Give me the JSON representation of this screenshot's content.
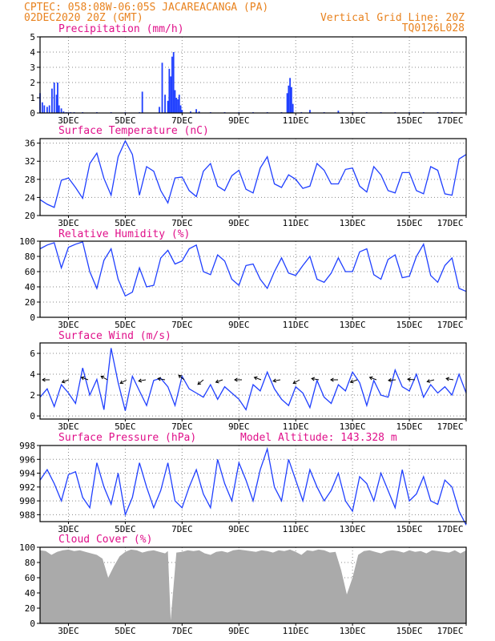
{
  "header": {
    "line1_left": "CPTEC:   058:08W-06:05S  JACAREACANGA (PA)",
    "line2_left": "02DEC2020 20Z (GMT)",
    "line2_right": "Vertical Grid Line: 20Z",
    "line3_right": "TQ0126L028"
  },
  "x_axis": {
    "tick_labels": [
      "3DEC",
      "5DEC",
      "7DEC",
      "9DEC",
      "11DEC",
      "13DEC",
      "15DEC",
      "17DEC"
    ]
  },
  "panels": {
    "precip": {
      "title": "Precipitation (mm/h)"
    },
    "temp": {
      "title": "Surface Temperature (nC)"
    },
    "rh": {
      "title": "Relative Humidity (%)"
    },
    "wind": {
      "title": "Surface Wind (m/s)"
    },
    "pressure": {
      "title": "Surface Pressure (hPa)",
      "extra": "Model Altitude: 143.328 m"
    },
    "cloud": {
      "title": "Cloud Cover (%)"
    }
  },
  "colors": {
    "series": "#1f3fff",
    "header": "#e8821e",
    "title": "#e0108a",
    "cloud": "#aaaaaa"
  },
  "chart_data": [
    {
      "type": "bar",
      "title": "Precipitation (mm/h)",
      "xlim": [
        0,
        15
      ],
      "ylim": [
        0,
        5
      ],
      "yticks": [
        0,
        1,
        2,
        3,
        4,
        5
      ],
      "x": [
        0.0,
        0.08,
        0.15,
        0.25,
        0.33,
        0.42,
        0.5,
        0.58,
        0.62,
        0.67,
        0.75,
        0.83,
        0.92,
        1.0,
        1.08,
        1.2,
        1.5,
        2.0,
        2.5,
        3.0,
        3.5,
        3.6,
        4.2,
        4.3,
        4.4,
        4.5,
        4.55,
        4.6,
        4.65,
        4.7,
        4.75,
        4.8,
        4.85,
        4.9,
        4.95,
        5.0,
        5.3,
        5.5,
        5.6,
        6.0,
        6.5,
        7.0,
        7.5,
        8.0,
        8.5,
        8.7,
        8.75,
        8.8,
        8.85,
        8.9,
        9.2,
        9.5,
        10.0,
        10.5,
        11.0,
        11.5,
        12.0,
        12.5,
        13.0,
        13.5,
        14.0,
        14.5
      ],
      "values": [
        1.3,
        0.7,
        0.5,
        0.4,
        0.5,
        1.6,
        2.0,
        1.2,
        2.0,
        0.5,
        0.3,
        0.1,
        0.05,
        0.05,
        0.05,
        0.05,
        0.05,
        0.05,
        0.05,
        0.05,
        0.05,
        1.4,
        0.4,
        3.3,
        1.2,
        0.8,
        2.9,
        2.4,
        3.7,
        4.0,
        1.5,
        1.0,
        0.9,
        1.2,
        0.5,
        0.2,
        0.1,
        0.25,
        0.1,
        0.05,
        0.05,
        0.05,
        0.05,
        0.05,
        0.05,
        1.3,
        1.8,
        2.3,
        1.7,
        0.6,
        0.05,
        0.2,
        0.05,
        0.15,
        0.05,
        0.05,
        0.05,
        0.05,
        0.05,
        0.05,
        0.05,
        0.05
      ]
    },
    {
      "type": "line",
      "title": "Surface Temperature (nC)",
      "xlim": [
        0,
        15
      ],
      "ylim": [
        20,
        37
      ],
      "yticks": [
        20,
        24,
        28,
        32,
        36
      ],
      "x": [
        0.0,
        0.25,
        0.5,
        0.75,
        1.0,
        1.25,
        1.5,
        1.75,
        2.0,
        2.25,
        2.5,
        2.75,
        3.0,
        3.25,
        3.5,
        3.75,
        4.0,
        4.25,
        4.5,
        4.75,
        5.0,
        5.25,
        5.5,
        5.75,
        6.0,
        6.25,
        6.5,
        6.75,
        7.0,
        7.25,
        7.5,
        7.75,
        8.0,
        8.25,
        8.5,
        8.75,
        9.0,
        9.25,
        9.5,
        9.75,
        10.0,
        10.25,
        10.5,
        10.75,
        11.0,
        11.25,
        11.5,
        11.75,
        12.0,
        12.25,
        12.5,
        12.75,
        13.0,
        13.25,
        13.5,
        13.75,
        14.0,
        14.25,
        14.5,
        14.75,
        15.0
      ],
      "values": [
        23.5,
        22.5,
        21.8,
        27.8,
        28.3,
        26.2,
        23.8,
        31.5,
        33.8,
        28.2,
        24.5,
        33.0,
        36.5,
        33.5,
        24.5,
        30.8,
        29.8,
        25.5,
        22.8,
        28.3,
        28.5,
        25.5,
        24.2,
        29.8,
        31.5,
        26.5,
        25.5,
        28.8,
        30.0,
        25.8,
        25.0,
        30.5,
        33.0,
        27.0,
        26.2,
        29.0,
        28.0,
        26.0,
        26.5,
        31.5,
        30.0,
        27.0,
        27.0,
        30.2,
        30.5,
        26.5,
        25.2,
        30.8,
        29.0,
        25.5,
        25.0,
        29.5,
        29.5,
        25.5,
        24.8,
        30.8,
        30.0,
        24.8,
        24.5,
        32.5,
        33.5
      ]
    },
    {
      "type": "line",
      "title": "Relative Humidity (%)",
      "xlim": [
        0,
        15
      ],
      "ylim": [
        0,
        100
      ],
      "yticks": [
        0,
        20,
        40,
        60,
        80,
        100
      ],
      "x": [
        0.0,
        0.25,
        0.5,
        0.75,
        1.0,
        1.25,
        1.5,
        1.75,
        2.0,
        2.25,
        2.5,
        2.75,
        3.0,
        3.25,
        3.5,
        3.75,
        4.0,
        4.25,
        4.5,
        4.75,
        5.0,
        5.25,
        5.5,
        5.75,
        6.0,
        6.25,
        6.5,
        6.75,
        7.0,
        7.25,
        7.5,
        7.75,
        8.0,
        8.25,
        8.5,
        8.75,
        9.0,
        9.25,
        9.5,
        9.75,
        10.0,
        10.25,
        10.5,
        10.75,
        11.0,
        11.25,
        11.5,
        11.75,
        12.0,
        12.25,
        12.5,
        12.75,
        13.0,
        13.25,
        13.5,
        13.75,
        14.0,
        14.25,
        14.5,
        14.75,
        15.0
      ],
      "values": [
        90,
        95,
        98,
        65,
        92,
        96,
        99,
        60,
        38,
        75,
        90,
        50,
        28,
        33,
        65,
        40,
        42,
        78,
        88,
        70,
        74,
        90,
        95,
        60,
        56,
        82,
        74,
        50,
        42,
        68,
        70,
        50,
        38,
        60,
        78,
        58,
        55,
        68,
        80,
        50,
        46,
        58,
        78,
        60,
        60,
        86,
        90,
        56,
        50,
        76,
        82,
        52,
        54,
        80,
        96,
        55,
        46,
        68,
        78,
        38,
        34
      ]
    },
    {
      "type": "line",
      "title": "Surface Wind (m/s)",
      "xlim": [
        0,
        15
      ],
      "ylim": [
        -0.3,
        7
      ],
      "yticks": [
        0,
        2,
        4,
        6
      ],
      "x": [
        0.0,
        0.25,
        0.5,
        0.75,
        1.0,
        1.25,
        1.5,
        1.75,
        2.0,
        2.25,
        2.5,
        2.75,
        3.0,
        3.25,
        3.5,
        3.75,
        4.0,
        4.25,
        4.5,
        4.75,
        5.0,
        5.25,
        5.5,
        5.75,
        6.0,
        6.25,
        6.5,
        6.75,
        7.0,
        7.25,
        7.5,
        7.75,
        8.0,
        8.25,
        8.5,
        8.75,
        9.0,
        9.25,
        9.5,
        9.75,
        10.0,
        10.25,
        10.5,
        10.75,
        11.0,
        11.25,
        11.5,
        11.75,
        12.0,
        12.25,
        12.5,
        12.75,
        13.0,
        13.25,
        13.5,
        13.75,
        14.0,
        14.25,
        14.5,
        14.75,
        15.0
      ],
      "values": [
        1.8,
        2.6,
        0.9,
        3.0,
        2.2,
        1.2,
        4.6,
        2.0,
        3.5,
        0.6,
        6.5,
        3.2,
        0.5,
        3.8,
        2.4,
        1.0,
        3.4,
        3.6,
        2.8,
        1.0,
        3.8,
        2.6,
        2.2,
        1.8,
        3.0,
        1.6,
        2.8,
        2.2,
        1.6,
        0.6,
        3.0,
        2.4,
        4.2,
        2.6,
        1.6,
        1.0,
        2.8,
        2.2,
        0.8,
        3.4,
        1.8,
        1.2,
        3.0,
        2.4,
        4.2,
        3.2,
        1.0,
        3.4,
        2.0,
        1.8,
        4.4,
        2.8,
        2.4,
        4.0,
        1.8,
        3.0,
        2.2,
        2.8,
        2.0,
        4.0,
        2.2
      ]
    },
    {
      "type": "line",
      "title": "Surface Pressure (hPa)",
      "xlim": [
        0,
        15
      ],
      "ylim": [
        987,
        998
      ],
      "yticks": [
        988,
        990,
        992,
        994,
        996,
        998
      ],
      "x": [
        0.0,
        0.25,
        0.5,
        0.75,
        1.0,
        1.25,
        1.5,
        1.75,
        2.0,
        2.25,
        2.5,
        2.75,
        3.0,
        3.25,
        3.5,
        3.75,
        4.0,
        4.25,
        4.5,
        4.75,
        5.0,
        5.25,
        5.5,
        5.75,
        6.0,
        6.25,
        6.5,
        6.75,
        7.0,
        7.25,
        7.5,
        7.75,
        8.0,
        8.25,
        8.5,
        8.75,
        9.0,
        9.25,
        9.5,
        9.75,
        10.0,
        10.25,
        10.5,
        10.75,
        11.0,
        11.25,
        11.5,
        11.75,
        12.0,
        12.25,
        12.5,
        12.75,
        13.0,
        13.25,
        13.5,
        13.75,
        14.0,
        14.25,
        14.5,
        14.75,
        15.0
      ],
      "values": [
        993.0,
        994.5,
        992.5,
        990.0,
        993.8,
        994.2,
        990.5,
        989.0,
        995.5,
        992.0,
        989.5,
        994.0,
        988.0,
        990.5,
        995.5,
        992.0,
        989.0,
        991.5,
        995.5,
        990.0,
        989.0,
        992.0,
        994.5,
        991.0,
        989.0,
        996.0,
        992.5,
        990.0,
        995.5,
        993.0,
        990.0,
        994.5,
        997.5,
        992.0,
        990.0,
        996.0,
        993.0,
        990.0,
        994.5,
        992.0,
        990.0,
        991.5,
        994.0,
        990.0,
        988.5,
        993.5,
        992.5,
        990.0,
        994.0,
        991.5,
        989.0,
        994.5,
        990.0,
        991.0,
        993.5,
        990.0,
        989.5,
        993.0,
        992.0,
        988.5,
        986.5
      ]
    },
    {
      "type": "area",
      "title": "Cloud Cover (%)",
      "xlim": [
        0,
        15
      ],
      "ylim": [
        0,
        100
      ],
      "yticks": [
        0,
        20,
        40,
        60,
        80,
        100
      ],
      "x": [
        0.0,
        0.2,
        0.4,
        0.6,
        0.8,
        1.0,
        1.2,
        1.4,
        1.6,
        1.8,
        2.0,
        2.2,
        2.4,
        2.6,
        2.8,
        3.0,
        3.2,
        3.4,
        3.6,
        3.8,
        4.0,
        4.2,
        4.4,
        4.5,
        4.6,
        4.8,
        5.0,
        5.2,
        5.4,
        5.6,
        5.8,
        6.0,
        6.2,
        6.4,
        6.6,
        6.8,
        7.0,
        7.2,
        7.4,
        7.6,
        7.8,
        8.0,
        8.2,
        8.4,
        8.6,
        8.8,
        9.0,
        9.2,
        9.4,
        9.6,
        9.8,
        10.0,
        10.2,
        10.4,
        10.6,
        10.8,
        11.0,
        11.2,
        11.4,
        11.6,
        11.8,
        12.0,
        12.2,
        12.4,
        12.6,
        12.8,
        13.0,
        13.2,
        13.4,
        13.6,
        13.8,
        14.0,
        14.2,
        14.4,
        14.6,
        14.8,
        15.0
      ],
      "values": [
        96,
        95,
        90,
        94,
        96,
        97,
        95,
        96,
        94,
        92,
        90,
        85,
        60,
        75,
        88,
        94,
        97,
        96,
        93,
        95,
        96,
        94,
        92,
        95,
        4,
        93,
        94,
        96,
        95,
        96,
        92,
        90,
        94,
        95,
        93,
        96,
        97,
        96,
        95,
        94,
        96,
        95,
        93,
        96,
        95,
        97,
        94,
        90,
        96,
        95,
        97,
        96,
        93,
        94,
        70,
        38,
        60,
        90,
        95,
        96,
        94,
        92,
        95,
        96,
        95,
        93,
        96,
        94,
        95,
        92,
        96,
        95,
        94,
        93,
        96,
        92,
        96
      ]
    }
  ]
}
